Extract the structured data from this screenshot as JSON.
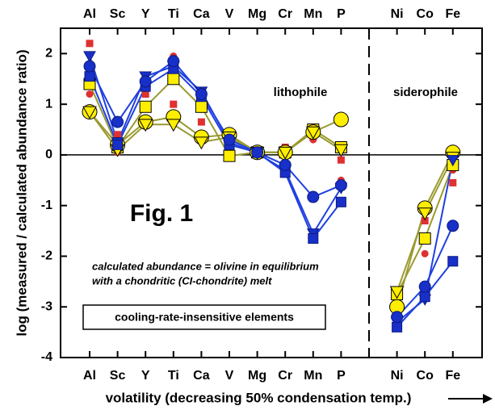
{
  "chart_data": {
    "type": "line",
    "title": "Fig. 1",
    "y_label": "log (measured / calculated abundance ratio)",
    "x_label": "volatility (decreasing 50% condensation temp.)",
    "annotations": [
      "lithophile",
      "siderophile",
      "calculated abundance = olivine in equilibrium",
      "with a chondritic (CI-chondrite) melt",
      "cooling-rate-insensitive elements"
    ],
    "categories": [
      "Al",
      "Sc",
      "Y",
      "Ti",
      "Ca",
      "V",
      "Mg",
      "Cr",
      "Mn",
      "P",
      null,
      "Ni",
      "Co",
      "Fe"
    ],
    "ylim": [
      -4,
      2.5
    ],
    "yticks": [
      2,
      1,
      0,
      -1,
      -2,
      -3,
      -4
    ],
    "hline": 0,
    "series": [
      {
        "color": "#e03030",
        "line": false,
        "marker": "square",
        "size": 4,
        "values": [
          2.2,
          0.4,
          1.2,
          1.0,
          0.65,
          0.1,
          0.05,
          0.15,
          0.35,
          -0.1,
          null,
          -2.85,
          -1.3,
          -0.55
        ]
      },
      {
        "color": "#e03030",
        "line": false,
        "marker": "circle",
        "size": 4,
        "values": [
          1.2,
          0.05,
          1.55,
          1.95,
          0.9,
          0.05,
          0.0,
          0.1,
          0.3,
          -0.5,
          null,
          -2.9,
          -1.95,
          -0.3
        ]
      },
      {
        "color": "#9a9a30",
        "line": true,
        "marker": "square",
        "size": 7,
        "fill": "#ffee00",
        "values": [
          1.4,
          0.15,
          0.95,
          1.5,
          0.95,
          -0.02,
          0.05,
          0.05,
          0.5,
          0.15,
          null,
          -2.75,
          -1.65,
          -0.2
        ]
      },
      {
        "color": "#9a9a30",
        "line": true,
        "marker": "circle",
        "size": 9,
        "fill": "#ffee00",
        "values": [
          0.85,
          0.2,
          0.65,
          0.75,
          0.35,
          0.4,
          0.05,
          0.05,
          0.45,
          0.7,
          null,
          -3.0,
          -1.05,
          0.05
        ]
      },
      {
        "color": "#9a9a30",
        "line": true,
        "marker": "triangle",
        "size": 8,
        "fill": "#ffee00",
        "values": [
          0.85,
          0.1,
          0.6,
          0.6,
          0.25,
          0.35,
          0.05,
          0.05,
          0.45,
          0.1,
          null,
          -2.7,
          -1.15,
          -0.05
        ]
      },
      {
        "color": "#2040e0",
        "line": true,
        "marker": "triangle",
        "size": 7,
        "fill": "#1830c8",
        "values": [
          1.95,
          0.25,
          1.55,
          1.75,
          1.25,
          0.25,
          0.03,
          -0.3,
          -1.55,
          -0.65,
          null,
          -3.3,
          -2.85,
          -0.1
        ]
      },
      {
        "color": "#2040e0",
        "line": true,
        "marker": "square",
        "size": 6,
        "fill": "#1830c8",
        "values": [
          1.55,
          0.2,
          1.35,
          1.7,
          1.15,
          0.2,
          0.05,
          -0.35,
          -1.65,
          -0.93,
          null,
          -3.4,
          -2.8,
          -2.1
        ]
      },
      {
        "color": "#2040e0",
        "line": true,
        "marker": "circle",
        "size": 7,
        "fill": "#1830c8",
        "values": [
          1.75,
          0.65,
          1.45,
          1.85,
          1.2,
          0.3,
          0.05,
          -0.2,
          -0.83,
          -0.6,
          null,
          -3.2,
          -2.6,
          -1.4
        ]
      }
    ]
  }
}
